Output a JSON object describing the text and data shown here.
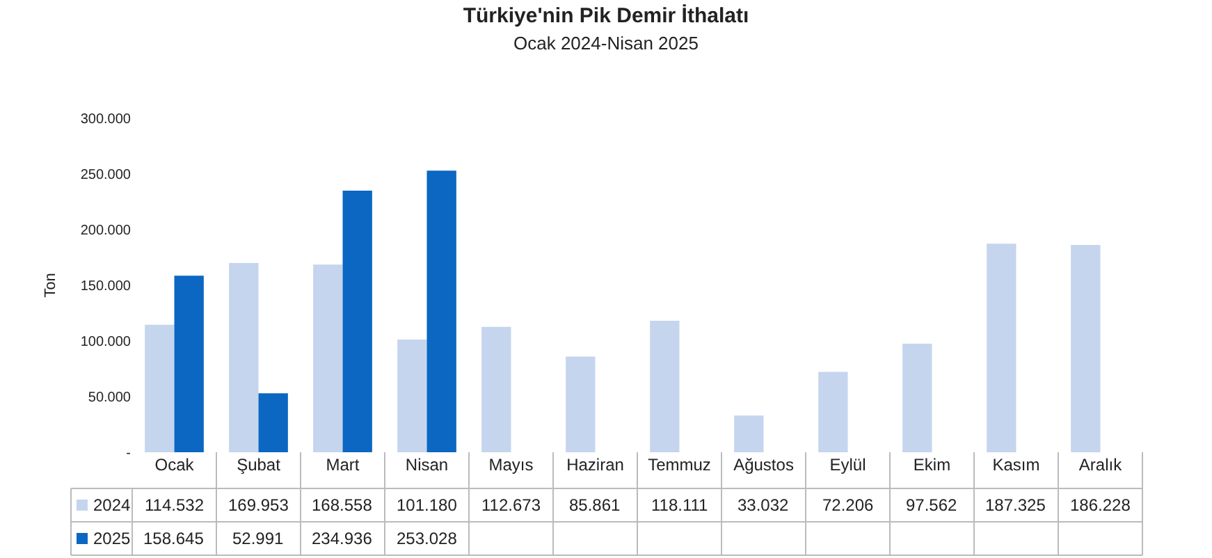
{
  "chart_data": {
    "type": "bar",
    "title": "Türkiye'nin Pik Demir İthalatı",
    "subtitle": "Ocak 2024-Nisan 2025",
    "ylabel": "Ton",
    "categories": [
      "Ocak",
      "Şubat",
      "Mart",
      "Nisan",
      "Mayıs",
      "Haziran",
      "Temmuz",
      "Ağustos",
      "Eylül",
      "Ekim",
      "Kasım",
      "Aralık"
    ],
    "series": [
      {
        "name": "2024",
        "color": "#c5d5ee",
        "values": [
          114532,
          169953,
          168558,
          101180,
          112673,
          85861,
          118111,
          33032,
          72206,
          97562,
          187325,
          186228
        ],
        "value_labels": [
          "114.532",
          "169.953",
          "168.558",
          "101.180",
          "112.673",
          "85.861",
          "118.111",
          "33.032",
          "72.206",
          "97.562",
          "187.325",
          "186.228"
        ]
      },
      {
        "name": "2025",
        "color": "#0b67c2",
        "values": [
          158645,
          52991,
          234936,
          253028,
          null,
          null,
          null,
          null,
          null,
          null,
          null,
          null
        ],
        "value_labels": [
          "158.645",
          "52.991",
          "234.936",
          "253.028",
          null,
          null,
          null,
          null,
          null,
          null,
          null,
          null
        ]
      }
    ],
    "ylim": [
      0,
      300000
    ],
    "yticks": [
      {
        "value": 0,
        "label": "-"
      },
      {
        "value": 50000,
        "label": "50.000"
      },
      {
        "value": 100000,
        "label": "100.000"
      },
      {
        "value": 150000,
        "label": "150.000"
      },
      {
        "value": 200000,
        "label": "200.000"
      },
      {
        "value": 250000,
        "label": "250.000"
      },
      {
        "value": 300000,
        "label": "300.000"
      }
    ],
    "grid": false,
    "legend": "bottom"
  }
}
